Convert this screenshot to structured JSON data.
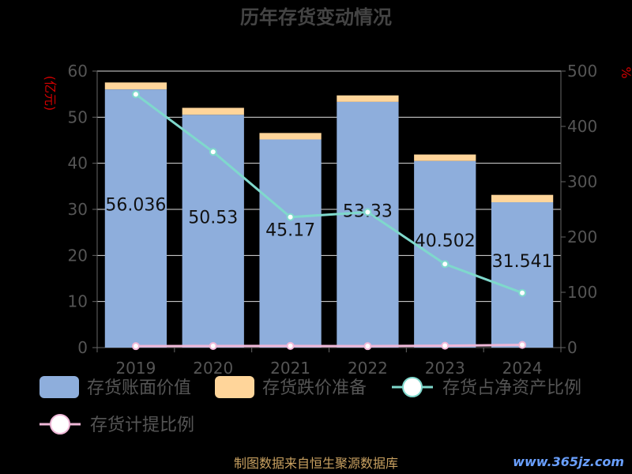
{
  "chart_data": {
    "type": "bar",
    "title": "历年存货变动情况",
    "categories": [
      "2019",
      "2020",
      "2021",
      "2022",
      "2023",
      "2024"
    ],
    "y_left_label": "(亿元)",
    "y_right_label": "%",
    "y_left_range": [
      0,
      60
    ],
    "y_left_ticks": [
      "0",
      "10",
      "20",
      "30",
      "40",
      "50",
      "60"
    ],
    "y_right_range": [
      0,
      500
    ],
    "y_right_ticks": [
      "0",
      "100",
      "200",
      "300",
      "400",
      "500"
    ],
    "series": [
      {
        "name": "存货账面价值",
        "kind": "bar",
        "axis": "left",
        "color": "#8eaedc",
        "values": [
          56.036,
          50.53,
          45.17,
          53.33,
          40.502,
          31.541
        ],
        "labels": [
          "56.036",
          "50.53",
          "45.17",
          "53.33",
          "40.502",
          "31.541"
        ]
      },
      {
        "name": "存货跌价准备",
        "kind": "bar",
        "axis": "left",
        "color": "#ffd59a",
        "values": [
          1.5,
          1.5,
          1.4,
          1.4,
          1.4,
          1.6
        ]
      },
      {
        "name": "存货占净资产比例",
        "kind": "line",
        "axis": "right",
        "color": "#7fd8cc",
        "values": [
          458,
          354,
          236,
          245,
          151,
          99
        ]
      },
      {
        "name": "存货计提比例",
        "kind": "line",
        "axis": "right",
        "color": "#f0b8d8",
        "values": [
          2.6,
          2.9,
          3.0,
          2.6,
          3.4,
          4.8
        ]
      }
    ],
    "grid": true,
    "legend_position": "bottom"
  },
  "footer": "制图数据来自恒生聚源数据库",
  "watermark": "www.365jz.com"
}
